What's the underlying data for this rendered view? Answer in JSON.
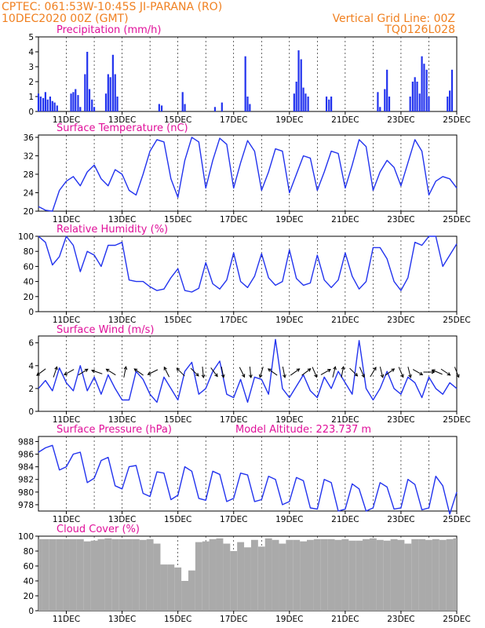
{
  "header": {
    "line1": "CPTEC:   061:53W-10:45S   JI-PARANA (RO)",
    "line2": "10DEC2020 00Z (GMT)",
    "grid_note": "Vertical Grid Line: 00Z",
    "product": "TQ0126L028"
  },
  "colors": {
    "header": "#f08020",
    "title": "#e0109a",
    "series": "#2233ee",
    "cloud": "#aaaaaa",
    "wind_arrow": "#000000"
  },
  "x_axis": {
    "range_days": [
      10,
      25
    ],
    "labels": [
      {
        "day": 11,
        "text": "11DEC"
      },
      {
        "day": 13,
        "text": "13DEC"
      },
      {
        "day": 15,
        "text": "15DEC"
      },
      {
        "day": 17,
        "text": "17DEC"
      },
      {
        "day": 19,
        "text": "19DEC"
      },
      {
        "day": 21,
        "text": "21DEC"
      },
      {
        "day": 23,
        "text": "23DEC"
      },
      {
        "day": 25,
        "text": "25DEC"
      }
    ]
  },
  "chart_data": [
    {
      "type": "bar",
      "title": "Precipitation (mm/h)",
      "ylim": [
        0,
        5
      ],
      "yticks": [
        "0",
        "1",
        "2",
        "3",
        "4",
        "5"
      ],
      "x": [
        10.0,
        10.08,
        10.17,
        10.25,
        10.33,
        10.42,
        10.5,
        10.58,
        10.67,
        11.17,
        11.25,
        11.33,
        11.42,
        11.5,
        11.67,
        11.75,
        11.83,
        11.92,
        12.0,
        12.42,
        12.5,
        12.58,
        12.67,
        12.75,
        12.83,
        14.33,
        14.42,
        15.17,
        15.25,
        16.33,
        16.58,
        17.42,
        17.5,
        17.58,
        19.17,
        19.25,
        19.33,
        19.42,
        19.5,
        19.58,
        19.67,
        20.33,
        20.42,
        20.5,
        22.17,
        22.25,
        22.42,
        22.5,
        22.58,
        23.33,
        23.42,
        23.5,
        23.58,
        23.67,
        23.75,
        23.83,
        23.92,
        24.0,
        24.67,
        24.75,
        24.83
      ],
      "values": [
        1.2,
        1.0,
        0.9,
        1.3,
        0.8,
        1.0,
        0.7,
        0.6,
        0.4,
        1.2,
        1.3,
        1.5,
        1.1,
        0.3,
        2.5,
        4.0,
        1.5,
        0.8,
        0.3,
        1.2,
        2.5,
        2.3,
        3.8,
        2.5,
        1.0,
        0.5,
        0.4,
        1.3,
        0.5,
        0.3,
        0.6,
        3.7,
        1.0,
        0.5,
        1.2,
        2.0,
        4.1,
        3.5,
        1.6,
        1.2,
        1.0,
        1.0,
        0.8,
        1.0,
        1.3,
        0.3,
        1.5,
        2.8,
        1.0,
        1.0,
        2.0,
        2.3,
        2.0,
        1.2,
        3.7,
        3.2,
        2.8,
        1.0,
        1.0,
        1.4,
        2.8
      ]
    },
    {
      "type": "line",
      "title": "Surface Temperature (nC)",
      "ylim": [
        20,
        36.5
      ],
      "yticks": [
        "20",
        "24",
        "28",
        "32",
        "36"
      ],
      "x": [
        10.0,
        10.25,
        10.5,
        10.75,
        11.0,
        11.25,
        11.5,
        11.75,
        12.0,
        12.25,
        12.5,
        12.75,
        13.0,
        13.25,
        13.5,
        13.75,
        14.0,
        14.25,
        14.5,
        14.75,
        15.0,
        15.25,
        15.5,
        15.75,
        16.0,
        16.25,
        16.5,
        16.75,
        17.0,
        17.25,
        17.5,
        17.75,
        18.0,
        18.25,
        18.5,
        18.75,
        19.0,
        19.25,
        19.5,
        19.75,
        20.0,
        20.25,
        20.5,
        20.75,
        21.0,
        21.25,
        21.5,
        21.75,
        22.0,
        22.25,
        22.5,
        22.75,
        23.0,
        23.25,
        23.5,
        23.75,
        24.0,
        24.25,
        24.5,
        24.75,
        25.0
      ],
      "values": [
        21.0,
        20.2,
        20.0,
        24.5,
        26.5,
        27.5,
        25.5,
        28.5,
        30.0,
        27.0,
        25.5,
        29.0,
        28.0,
        24.5,
        23.5,
        28.0,
        33.0,
        35.5,
        35.0,
        27.0,
        23.0,
        31.0,
        36.0,
        35.0,
        25.0,
        31.0,
        35.8,
        34.5,
        25.0,
        30.5,
        35.3,
        33.0,
        24.5,
        28.5,
        33.5,
        33.0,
        24.0,
        28.0,
        32.0,
        31.5,
        24.5,
        28.5,
        33.0,
        32.5,
        25.0,
        30.0,
        35.5,
        34.0,
        24.5,
        28.5,
        31.0,
        29.5,
        25.5,
        30.5,
        35.5,
        33.0,
        23.5,
        26.5,
        27.5,
        27.0,
        25.0
      ]
    },
    {
      "type": "line",
      "title": "Relative Humidity (%)",
      "ylim": [
        0,
        100
      ],
      "yticks": [
        "0",
        "20",
        "40",
        "60",
        "80",
        "100"
      ],
      "x": [
        10.0,
        10.25,
        10.5,
        10.75,
        11.0,
        11.25,
        11.5,
        11.75,
        12.0,
        12.25,
        12.5,
        12.75,
        13.0,
        13.25,
        13.5,
        13.75,
        14.0,
        14.25,
        14.5,
        14.75,
        15.0,
        15.25,
        15.5,
        15.75,
        16.0,
        16.25,
        16.5,
        16.75,
        17.0,
        17.25,
        17.5,
        17.75,
        18.0,
        18.25,
        18.5,
        18.75,
        19.0,
        19.25,
        19.5,
        19.75,
        20.0,
        20.25,
        20.5,
        20.75,
        21.0,
        21.25,
        21.5,
        21.75,
        22.0,
        22.25,
        22.5,
        22.75,
        23.0,
        23.25,
        23.5,
        23.75,
        24.0,
        24.25,
        24.5,
        24.75,
        25.0
      ],
      "values": [
        100.0,
        92.0,
        62.0,
        73.0,
        100.0,
        88.0,
        53.0,
        80.0,
        75.0,
        60.0,
        88.0,
        88.0,
        92.0,
        42.0,
        40.0,
        40.0,
        33.0,
        28.0,
        30.0,
        45.0,
        57.0,
        28.0,
        26.0,
        31.0,
        65.0,
        37.0,
        30.0,
        42.0,
        78.0,
        40.0,
        32.0,
        47.0,
        77.0,
        45.0,
        35.0,
        40.0,
        82.0,
        44.0,
        35.0,
        38.0,
        75.0,
        42.0,
        32.0,
        42.0,
        78.0,
        47.0,
        30.0,
        40.0,
        85.0,
        85.0,
        70.0,
        40.0,
        28.0,
        45.0,
        92.0,
        88.0,
        100.0,
        100.0,
        60.0,
        75.0,
        90.0
      ]
    },
    {
      "type": "line",
      "title": "Surface Wind (m/s)",
      "ylim": [
        0,
        6.6
      ],
      "yticks": [
        "0",
        "2",
        "4",
        "6"
      ],
      "x": [
        10.0,
        10.25,
        10.5,
        10.75,
        11.0,
        11.25,
        11.5,
        11.75,
        12.0,
        12.25,
        12.5,
        12.75,
        13.0,
        13.25,
        13.5,
        13.75,
        14.0,
        14.25,
        14.5,
        14.75,
        15.0,
        15.25,
        15.5,
        15.75,
        16.0,
        16.25,
        16.5,
        16.75,
        17.0,
        17.25,
        17.5,
        17.75,
        18.0,
        18.25,
        18.5,
        18.75,
        19.0,
        19.25,
        19.5,
        19.75,
        20.0,
        20.25,
        20.5,
        20.75,
        21.0,
        21.25,
        21.5,
        21.75,
        22.0,
        22.25,
        22.5,
        22.75,
        23.0,
        23.25,
        23.5,
        23.75,
        24.0,
        24.25,
        24.5,
        24.75,
        25.0
      ],
      "values": [
        2.0,
        2.7,
        1.8,
        3.8,
        2.5,
        1.8,
        4.0,
        1.8,
        3.0,
        1.5,
        3.2,
        2.0,
        1.0,
        1.0,
        3.5,
        2.8,
        1.5,
        0.8,
        3.0,
        2.0,
        1.0,
        3.5,
        4.3,
        1.5,
        2.0,
        3.5,
        4.4,
        1.5,
        1.2,
        2.8,
        0.8,
        3.0,
        2.8,
        1.5,
        6.3,
        2.0,
        1.2,
        2.2,
        3.2,
        1.8,
        1.2,
        3.0,
        2.0,
        3.5,
        2.5,
        1.5,
        6.2,
        2.0,
        1.0,
        2.0,
        3.5,
        2.0,
        1.5,
        3.0,
        2.5,
        1.2,
        3.0,
        2.0,
        1.5,
        2.5,
        2.0
      ],
      "wind_vectors": [
        {
          "day": 10.1,
          "u": -0.8,
          "v": -0.6
        },
        {
          "day": 10.6,
          "u": 0.3,
          "v": 0.9
        },
        {
          "day": 11.1,
          "u": -0.9,
          "v": -0.5
        },
        {
          "day": 11.6,
          "u": 0.8,
          "v": 0.5
        },
        {
          "day": 12.1,
          "u": -0.9,
          "v": 0.3
        },
        {
          "day": 12.6,
          "u": -0.8,
          "v": 0.5
        },
        {
          "day": 13.1,
          "u": 0.2,
          "v": 1.0
        },
        {
          "day": 13.6,
          "u": -0.7,
          "v": 0.5
        },
        {
          "day": 14.1,
          "u": -0.6,
          "v": -0.3
        },
        {
          "day": 14.6,
          "u": -0.2,
          "v": 0.4
        },
        {
          "day": 15.1,
          "u": -0.5,
          "v": 0.5
        },
        {
          "day": 15.6,
          "u": 0.6,
          "v": -0.6
        },
        {
          "day": 15.9,
          "u": 0.1,
          "v": -1.0
        },
        {
          "day": 16.3,
          "u": 0.6,
          "v": -0.8
        },
        {
          "day": 16.6,
          "u": 0.2,
          "v": -1.0
        },
        {
          "day": 17.3,
          "u": 0.4,
          "v": -0.8
        },
        {
          "day": 17.6,
          "u": 0.1,
          "v": -1.0
        },
        {
          "day": 18.0,
          "u": -0.3,
          "v": -1.0
        },
        {
          "day": 18.4,
          "u": -0.7,
          "v": 0.5
        },
        {
          "day": 18.8,
          "u": 0.2,
          "v": -1.0
        },
        {
          "day": 19.2,
          "u": 0.7,
          "v": 0.5
        },
        {
          "day": 19.6,
          "u": 0.8,
          "v": 0.6
        },
        {
          "day": 19.9,
          "u": 0.3,
          "v": -0.7
        },
        {
          "day": 20.3,
          "u": 0.7,
          "v": 0.4
        },
        {
          "day": 20.6,
          "u": 0.2,
          "v": 0.8
        },
        {
          "day": 20.9,
          "u": 0.2,
          "v": 1.0
        },
        {
          "day": 21.3,
          "u": 0.5,
          "v": -0.5
        },
        {
          "day": 21.6,
          "u": 0.4,
          "v": -0.9
        },
        {
          "day": 22.0,
          "u": 0.3,
          "v": 0.5
        },
        {
          "day": 22.3,
          "u": 0.2,
          "v": -0.8
        },
        {
          "day": 22.6,
          "u": 0.7,
          "v": 0.5
        },
        {
          "day": 23.0,
          "u": 0.3,
          "v": -0.7
        },
        {
          "day": 23.3,
          "u": 0.2,
          "v": -0.8
        },
        {
          "day": 23.6,
          "u": 0.7,
          "v": -0.4
        },
        {
          "day": 24.0,
          "u": 0.8,
          "v": 0.0
        },
        {
          "day": 24.3,
          "u": -0.7,
          "v": 0.3
        },
        {
          "day": 24.6,
          "u": 0.6,
          "v": -0.4
        },
        {
          "day": 25.0,
          "u": 0.2,
          "v": -0.5
        }
      ]
    },
    {
      "type": "line",
      "title": "Surface Pressure (hPa)",
      "subtitle": "Model Altitude: 223.737 m",
      "ylim": [
        977,
        988.8
      ],
      "yticks": [
        "978",
        "980",
        "982",
        "984",
        "986",
        "988"
      ],
      "x": [
        10.0,
        10.25,
        10.5,
        10.75,
        11.0,
        11.25,
        11.5,
        11.75,
        12.0,
        12.25,
        12.5,
        12.75,
        13.0,
        13.25,
        13.5,
        13.75,
        14.0,
        14.25,
        14.5,
        14.75,
        15.0,
        15.25,
        15.5,
        15.75,
        16.0,
        16.25,
        16.5,
        16.75,
        17.0,
        17.25,
        17.5,
        17.75,
        18.0,
        18.25,
        18.5,
        18.75,
        19.0,
        19.25,
        19.5,
        19.75,
        20.0,
        20.25,
        20.5,
        20.75,
        21.0,
        21.25,
        21.5,
        21.75,
        22.0,
        22.25,
        22.5,
        22.75,
        23.0,
        23.25,
        23.5,
        23.75,
        24.0,
        24.25,
        24.5,
        24.75,
        25.0
      ],
      "values": [
        986.3,
        987.0,
        987.4,
        983.5,
        984.0,
        986.0,
        986.3,
        981.5,
        982.2,
        985.0,
        985.5,
        981.0,
        980.5,
        984.0,
        984.2,
        979.8,
        979.3,
        983.2,
        983.0,
        978.8,
        979.5,
        984.0,
        983.3,
        979.0,
        978.7,
        983.3,
        982.8,
        978.5,
        979.0,
        983.0,
        982.7,
        978.5,
        978.8,
        982.5,
        982.0,
        978.0,
        978.5,
        982.3,
        981.8,
        977.5,
        977.3,
        982.0,
        981.5,
        977.0,
        977.3,
        981.3,
        980.5,
        977.0,
        977.5,
        981.5,
        980.8,
        977.3,
        977.5,
        982.0,
        981.2,
        977.2,
        977.5,
        982.5,
        981.0,
        976.5,
        980.0
      ]
    },
    {
      "type": "bar",
      "title": "Cloud Cover (%)",
      "ylim": [
        0,
        100
      ],
      "yticks": [
        "0",
        "20",
        "40",
        "60",
        "80",
        "100"
      ],
      "x": [
        10.0,
        10.25,
        10.5,
        10.75,
        11.0,
        11.25,
        11.5,
        11.75,
        12.0,
        12.25,
        12.5,
        12.75,
        13.0,
        13.25,
        13.5,
        13.75,
        14.0,
        14.25,
        14.5,
        14.75,
        15.0,
        15.25,
        15.5,
        15.75,
        16.0,
        16.25,
        16.5,
        16.75,
        17.0,
        17.25,
        17.5,
        17.75,
        18.0,
        18.25,
        18.5,
        18.75,
        19.0,
        19.25,
        19.5,
        19.75,
        20.0,
        20.25,
        20.5,
        20.75,
        21.0,
        21.25,
        21.5,
        21.75,
        22.0,
        22.25,
        22.5,
        22.75,
        23.0,
        23.25,
        23.5,
        23.75,
        24.0,
        24.25,
        24.5,
        24.75,
        25.0
      ],
      "values": [
        96,
        96,
        96,
        96,
        96,
        96,
        96,
        93,
        94,
        96,
        97,
        96,
        96,
        96,
        96,
        95,
        96,
        90,
        62,
        62,
        58,
        40,
        54,
        92,
        93,
        96,
        97,
        90,
        80,
        92,
        85,
        95,
        86,
        97,
        95,
        90,
        95,
        95,
        93,
        95,
        96,
        96,
        96,
        95,
        96,
        94,
        94,
        96,
        97,
        95,
        94,
        96,
        95,
        90,
        96,
        96,
        95,
        96,
        95,
        96,
        97
      ]
    }
  ]
}
